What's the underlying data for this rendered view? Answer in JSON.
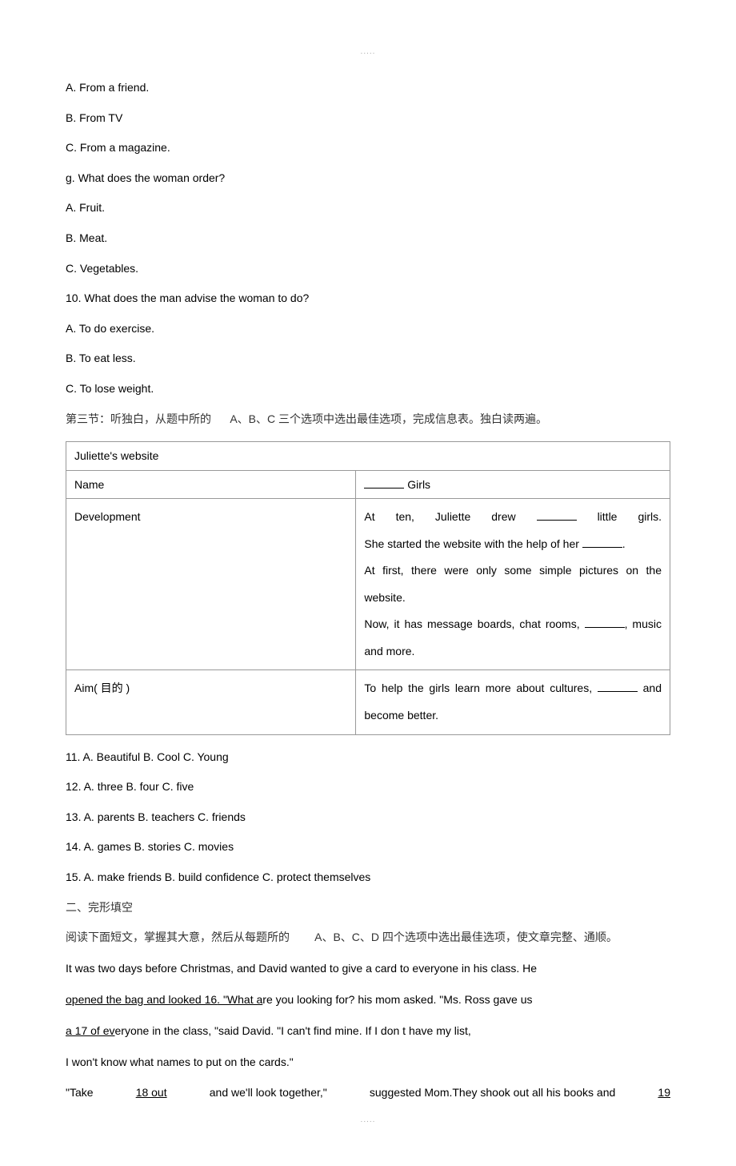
{
  "dots": ".....",
  "q_options": {
    "opt_a_friend": "A. From a friend.",
    "opt_b_tv": "B. From TV",
    "opt_c_magazine": "C. From a magazine.",
    "q_g": "g. What does the woman order?",
    "opt_a_fruit": "A. Fruit.",
    "opt_b_meat": "B. Meat.",
    "opt_c_vegetables": "C. Vegetables.",
    "q_10": "10. What does the man advise the woman to do?",
    "opt_a_exercise": "A. To do exercise.",
    "opt_b_eatless": "B. To eat less.",
    "opt_c_loseweight": "C. To lose weight."
  },
  "section3_prefix": "第三节：听独白，从题中所的",
  "section3_abc": "A、B、C",
  "section3_suffix": "三个选项中选出最佳选项，完成信息表。独白读两遍。",
  "table": {
    "header": "Juliette's website",
    "row1_left": "Name",
    "row1_right_after": " Girls",
    "row2_left": "Development",
    "row2_r1_a": "At ten, Juliette drew ",
    "row2_r1_b": " little girls.",
    "row2_r2_a": "She started the website with the help of her ",
    "row2_r2_b": ".",
    "row2_r3": "At first, there were only some simple pictures on the website.",
    "row2_r4_a": "Now, it has message boards, chat rooms, ",
    "row2_r4_b": ", music and more.",
    "row3_left": "Aim( 目的 )",
    "row3_r_a": "To help the girls learn more about cultures, ",
    "row3_r_b": " and become better."
  },
  "mc": {
    "q11": "11. A. Beautiful     B. Cool     C. Young",
    "q12": "12. A. three     B. four     C. five",
    "q13": "13. A. parents     B. teachers     C. friends",
    "q14": "14. A. games     B. stories     C. movies",
    "q15": "15. A. make friends     B. build confidence     C. protect themselves"
  },
  "section2": {
    "title": "二、完形填空",
    "intro_a": "阅读下面短文，掌握其大意，然后从每题所的",
    "intro_abcd": "A、B、C、D",
    "intro_b": "四个选项中选出最佳选项，使文章完整、通顺。"
  },
  "passage": {
    "p1": "It was two days before Christmas, and David wanted to give a card to everyone in his class. He",
    "p2_a": "opened the bag and looked    16",
    "p2_b": ". \"What a",
    "p2_c": "re you looking for? his mom asked. \"Ms. Ross gave us",
    "p3_a": "a   17   of ev",
    "p3_b": "eryone in the class, \"said David. \"I can't find mine. If I don t have my list,",
    "p4": "I won't know what names to put on the cards.\"",
    "p5_a": "\"Take",
    "p5_18": "18   out",
    "p5_b": "and we'll   look together,\"",
    "p5_c": "suggested  Mom.They shook out  all   his books  and",
    "p5_19": "19"
  }
}
